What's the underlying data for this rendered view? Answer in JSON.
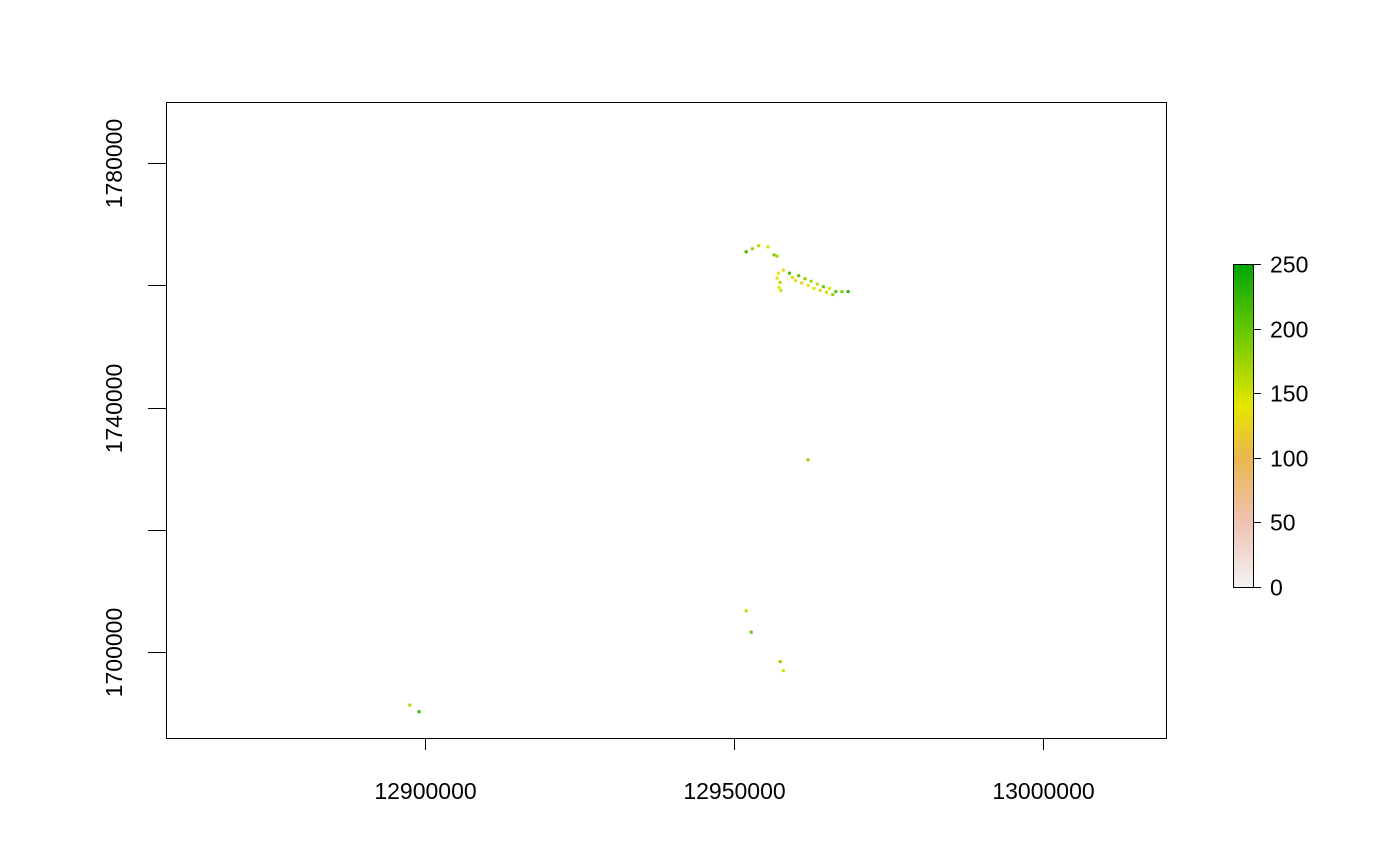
{
  "chart_data": {
    "type": "heatmap",
    "title": "",
    "xlabel": "",
    "ylabel": "",
    "xlim": [
      12858000,
      13020000
    ],
    "ylim": [
      1686000,
      1790000
    ],
    "x_ticks": [
      {
        "value": 12900000,
        "label": "12900000"
      },
      {
        "value": 12950000,
        "label": "12950000"
      },
      {
        "value": 13000000,
        "label": "13000000"
      }
    ],
    "y_ticks": [
      {
        "value": 1700000,
        "label": "1700000"
      },
      {
        "value": 1720000,
        "label": ""
      },
      {
        "value": 1740000,
        "label": "1740000"
      },
      {
        "value": 1760000,
        "label": ""
      },
      {
        "value": 1780000,
        "label": "1780000"
      }
    ],
    "grid": false,
    "legend": {
      "placement": "right",
      "min": 0,
      "max": 250,
      "ticks": [
        {
          "value": 0,
          "label": "0"
        },
        {
          "value": 50,
          "label": "50"
        },
        {
          "value": 100,
          "label": "100"
        },
        {
          "value": 150,
          "label": "150"
        },
        {
          "value": 200,
          "label": "200"
        },
        {
          "value": 250,
          "label": "250"
        }
      ],
      "color_stops": [
        {
          "value": 0,
          "color": "#f2f2f2"
        },
        {
          "value": 50,
          "color": "#efc2b3"
        },
        {
          "value": 100,
          "color": "#eab64e"
        },
        {
          "value": 140,
          "color": "#e6e600"
        },
        {
          "value": 200,
          "color": "#63c600"
        },
        {
          "value": 250,
          "color": "#00a600"
        }
      ]
    },
    "cells": [
      {
        "x": 12952000,
        "y": 1765500,
        "v": 220
      },
      {
        "x": 12953000,
        "y": 1766000,
        "v": 180
      },
      {
        "x": 12954000,
        "y": 1766500,
        "v": 160
      },
      {
        "x": 12955500,
        "y": 1766300,
        "v": 150
      },
      {
        "x": 12956500,
        "y": 1765000,
        "v": 190
      },
      {
        "x": 12957000,
        "y": 1764800,
        "v": 170
      },
      {
        "x": 12957200,
        "y": 1762000,
        "v": 140
      },
      {
        "x": 12957000,
        "y": 1761200,
        "v": 135
      },
      {
        "x": 12957500,
        "y": 1760500,
        "v": 160
      },
      {
        "x": 12957300,
        "y": 1759700,
        "v": 140
      },
      {
        "x": 12957600,
        "y": 1759200,
        "v": 150
      },
      {
        "x": 12958000,
        "y": 1762500,
        "v": 130
      },
      {
        "x": 12959000,
        "y": 1762000,
        "v": 210
      },
      {
        "x": 12959500,
        "y": 1761300,
        "v": 145
      },
      {
        "x": 12960000,
        "y": 1760800,
        "v": 130
      },
      {
        "x": 12960500,
        "y": 1761600,
        "v": 200
      },
      {
        "x": 12961000,
        "y": 1760400,
        "v": 120
      },
      {
        "x": 12961500,
        "y": 1761100,
        "v": 180
      },
      {
        "x": 12962000,
        "y": 1760000,
        "v": 135
      },
      {
        "x": 12962500,
        "y": 1760700,
        "v": 170
      },
      {
        "x": 12963000,
        "y": 1759500,
        "v": 140
      },
      {
        "x": 12963500,
        "y": 1760200,
        "v": 160
      },
      {
        "x": 12964000,
        "y": 1759200,
        "v": 125
      },
      {
        "x": 12964500,
        "y": 1759800,
        "v": 200
      },
      {
        "x": 12965000,
        "y": 1758900,
        "v": 150
      },
      {
        "x": 12965500,
        "y": 1759500,
        "v": 130
      },
      {
        "x": 12966000,
        "y": 1758500,
        "v": 175
      },
      {
        "x": 12966500,
        "y": 1759000,
        "v": 210
      },
      {
        "x": 12967500,
        "y": 1759000,
        "v": 190
      },
      {
        "x": 12968500,
        "y": 1759000,
        "v": 230
      },
      {
        "x": 12962000,
        "y": 1731500,
        "v": 180
      },
      {
        "x": 12952000,
        "y": 1706800,
        "v": 160
      },
      {
        "x": 12952800,
        "y": 1703300,
        "v": 200
      },
      {
        "x": 12957500,
        "y": 1698500,
        "v": 180
      },
      {
        "x": 12958000,
        "y": 1697000,
        "v": 150
      },
      {
        "x": 12897500,
        "y": 1691400,
        "v": 170
      },
      {
        "x": 12899000,
        "y": 1690300,
        "v": 220
      }
    ]
  }
}
